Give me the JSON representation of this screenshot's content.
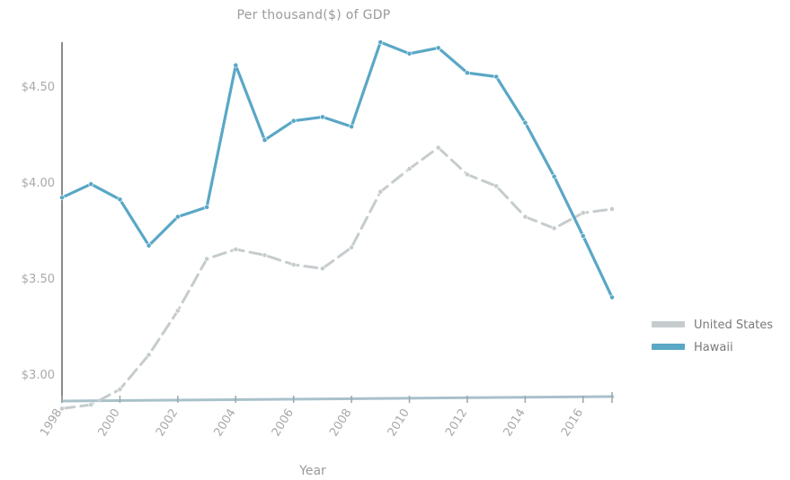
{
  "chart_data": {
    "type": "line",
    "title": "Per thousand($) of GDP",
    "xlabel": "Year",
    "ylabel": "",
    "x": [
      1998,
      1999,
      2000,
      2001,
      2002,
      2003,
      2004,
      2005,
      2006,
      2007,
      2008,
      2009,
      2010,
      2011,
      2012,
      2013,
      2014,
      2015,
      2016,
      2017
    ],
    "x_ticks": [
      "1998",
      "2000",
      "2002",
      "2004",
      "2006",
      "2008",
      "2010",
      "2012",
      "2014",
      "2016"
    ],
    "y_ticks": [
      "$3.00",
      "$3.50",
      "$4.00",
      "$4.50"
    ],
    "ylim": [
      2.85,
      4.73
    ],
    "grid": false,
    "legend_position": "right",
    "series": [
      {
        "name": "United States",
        "color": "#c6cccd",
        "style": "dashed",
        "values": [
          2.82,
          2.84,
          2.92,
          3.1,
          3.33,
          3.6,
          3.65,
          3.62,
          3.57,
          3.55,
          3.66,
          3.95,
          4.07,
          4.18,
          4.04,
          3.98,
          3.82,
          3.76,
          3.84,
          3.86
        ]
      },
      {
        "name": "Hawaii",
        "color": "#5aa7c6",
        "style": "solid",
        "values": [
          3.92,
          3.99,
          3.91,
          3.67,
          3.82,
          3.87,
          4.61,
          4.22,
          4.32,
          4.34,
          4.29,
          4.73,
          4.67,
          4.7,
          4.57,
          4.55,
          4.31,
          4.03,
          3.72,
          3.4
        ]
      }
    ]
  }
}
